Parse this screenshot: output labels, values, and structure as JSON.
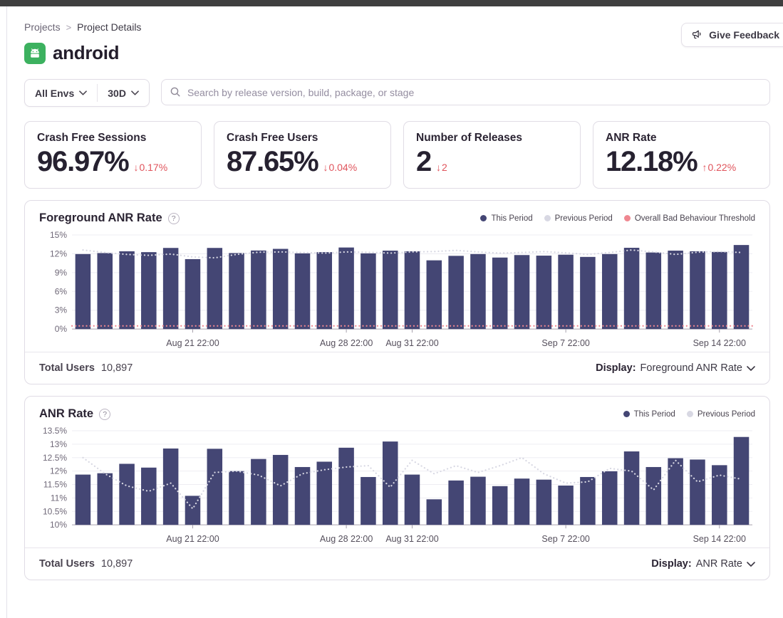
{
  "breadcrumb": {
    "items": [
      "Projects",
      "Project Details"
    ],
    "separator": ">"
  },
  "feedback": {
    "label": "Give Feedback"
  },
  "project": {
    "name": "android"
  },
  "filters": {
    "env": "All Envs",
    "period": "30D"
  },
  "search": {
    "placeholder": "Search by release version, build, package, or stage"
  },
  "stats": [
    {
      "title": "Crash Free Sessions",
      "value": "96.97%",
      "arrow": "↓",
      "delta": "0.17%",
      "direction": "down"
    },
    {
      "title": "Crash Free Users",
      "value": "87.65%",
      "arrow": "↓",
      "delta": "0.04%",
      "direction": "down"
    },
    {
      "title": "Number of Releases",
      "value": "2",
      "arrow": "↓",
      "delta": "2",
      "direction": "down"
    },
    {
      "title": "ANR Rate",
      "value": "12.18%",
      "arrow": "↑",
      "delta": "0.22%",
      "direction": "up"
    }
  ],
  "colors": {
    "bar": "#444674",
    "previous_period": "#d8d8e3",
    "threshold": "#ef8790",
    "delta_red": "#e0545c",
    "android_green": "#3cb15f",
    "topbar": "#3f3f3f"
  },
  "chart_data": [
    {
      "type": "bar",
      "title": "Foreground ANR Rate",
      "ylim": [
        0,
        15
      ],
      "yticks": [
        0,
        3,
        6,
        9,
        12,
        15
      ],
      "ytick_suffix": "%",
      "grid": true,
      "legend_position": "top-right",
      "legend": [
        {
          "label": "This Period",
          "color": "#444674"
        },
        {
          "label": "Previous Period",
          "color": "#d8d8e3"
        },
        {
          "label": "Overall Bad Behaviour Threshold",
          "color": "#ef8790"
        }
      ],
      "xticks": [
        {
          "index": 5,
          "label": "Aug 21 22:00"
        },
        {
          "index": 12,
          "label": "Aug 28 22:00"
        },
        {
          "index": 15,
          "label": "Aug 31 22:00"
        },
        {
          "index": 22,
          "label": "Sep 7 22:00"
        },
        {
          "index": 29,
          "label": "Sep 14 22:00"
        }
      ],
      "series": [
        {
          "name": "This Period",
          "type": "bar",
          "color": "#444674",
          "values": [
            11.96,
            12.11,
            12.4,
            12.26,
            12.93,
            11.15,
            12.93,
            12.11,
            12.52,
            12.78,
            12.07,
            12.26,
            13.0,
            12.07,
            12.5,
            12.4,
            10.95,
            11.67,
            11.96,
            11.4,
            11.8,
            11.7,
            11.85,
            11.5,
            11.95,
            12.95,
            12.2,
            12.5,
            12.4,
            12.3,
            13.4
          ]
        },
        {
          "name": "Previous Period",
          "type": "line",
          "style": "dotted",
          "color": "#d8d8e3",
          "values": [
            12.6,
            12.2,
            11.9,
            11.75,
            11.95,
            11.5,
            11.35,
            11.9,
            12.25,
            12.3,
            12.2,
            12.1,
            12.3,
            12.25,
            12.1,
            12.3,
            12.35,
            12.55,
            12.3,
            12.1,
            12.2,
            12.35,
            12.15,
            11.9,
            12.2,
            12.6,
            12.3,
            11.9,
            12.25,
            12.35,
            12.2
          ]
        },
        {
          "name": "Overall Bad Behaviour Threshold",
          "type": "threshold",
          "style": "dotted",
          "color": "#ef8790",
          "value": 0.5
        }
      ],
      "footer": {
        "total_users_label": "Total Users",
        "total_users": "10,897",
        "display_label": "Display:",
        "display_value": "Foreground ANR Rate"
      }
    },
    {
      "type": "bar",
      "title": "ANR Rate",
      "ylim": [
        10,
        13.5
      ],
      "yticks": [
        10,
        10.5,
        11,
        11.5,
        12,
        12.5,
        13,
        13.5
      ],
      "ytick_suffix": "%",
      "grid": true,
      "legend_position": "top-right",
      "legend": [
        {
          "label": "This Period",
          "color": "#444674"
        },
        {
          "label": "Previous Period",
          "color": "#d8d8e3"
        }
      ],
      "xticks": [
        {
          "index": 5,
          "label": "Aug 21 22:00"
        },
        {
          "index": 12,
          "label": "Aug 28 22:00"
        },
        {
          "index": 15,
          "label": "Aug 31 22:00"
        },
        {
          "index": 22,
          "label": "Sep 7 22:00"
        },
        {
          "index": 29,
          "label": "Sep 14 22:00"
        }
      ],
      "series": [
        {
          "name": "This Period",
          "type": "bar",
          "color": "#444674",
          "values": [
            11.87,
            11.92,
            12.27,
            12.13,
            12.84,
            11.08,
            12.83,
            12.0,
            12.45,
            12.6,
            12.15,
            12.35,
            12.87,
            11.78,
            13.1,
            11.87,
            10.95,
            11.65,
            11.79,
            11.44,
            11.72,
            11.68,
            11.46,
            11.78,
            11.99,
            12.73,
            12.15,
            12.48,
            12.43,
            12.22,
            13.27
          ]
        },
        {
          "name": "Previous Period",
          "type": "line",
          "style": "dotted",
          "color": "#d8d8e3",
          "values": [
            12.5,
            11.9,
            11.45,
            11.25,
            11.55,
            10.6,
            11.95,
            12.0,
            11.85,
            11.45,
            11.9,
            12.05,
            12.15,
            12.2,
            11.4,
            12.4,
            11.9,
            12.2,
            11.95,
            12.2,
            12.5,
            11.9,
            11.55,
            11.6,
            12.1,
            12.0,
            11.3,
            12.4,
            11.6,
            11.85,
            11.7
          ]
        }
      ],
      "footer": {
        "total_users_label": "Total Users",
        "total_users": "10,897",
        "display_label": "Display:",
        "display_value": "ANR Rate"
      }
    }
  ]
}
